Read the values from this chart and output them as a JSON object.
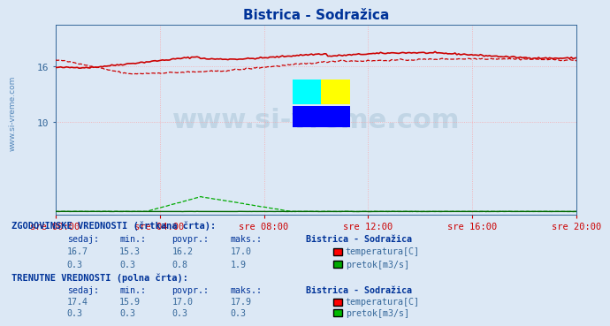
{
  "title": "Bistrica - Sodražica",
  "title_color": "#003399",
  "bg_color": "#dce8f5",
  "plot_bg_color": "#dce8f5",
  "grid_color": "#ff9999",
  "x_ticks_labels": [
    "sre 00:00",
    "sre 04:00",
    "sre 08:00",
    "sre 12:00",
    "sre 16:00",
    "sre 20:00"
  ],
  "y_ticks": [
    10,
    16
  ],
  "ylim": [
    0,
    20.5
  ],
  "xlim": [
    0,
    287
  ],
  "temp_color": "#cc0000",
  "flow_solid_color": "#006600",
  "flow_dashed_color": "#00aa00",
  "sidebar_color": "#5588bb",
  "text_color": "#003399",
  "mono_color": "#336699",
  "watermark_color": "#b8cfe0",
  "hist_label": "ZGODOVINSKE VREDNOSTI (črtkana črta):",
  "curr_label": "TRENUTNE VREDNOSTI (polna črta):",
  "station_name": "Bistrica - Sodražica",
  "hist_temp": [
    16.7,
    15.3,
    16.2,
    17.0
  ],
  "hist_flow": [
    0.3,
    0.3,
    0.8,
    1.9
  ],
  "curr_temp": [
    17.4,
    15.9,
    17.0,
    17.9
  ],
  "curr_flow": [
    0.3,
    0.3,
    0.3,
    0.3
  ],
  "legend_temp": "temperatura[C]",
  "legend_flow": "pretok[m3/s]",
  "sidebar_text": "www.si-vreme.com"
}
